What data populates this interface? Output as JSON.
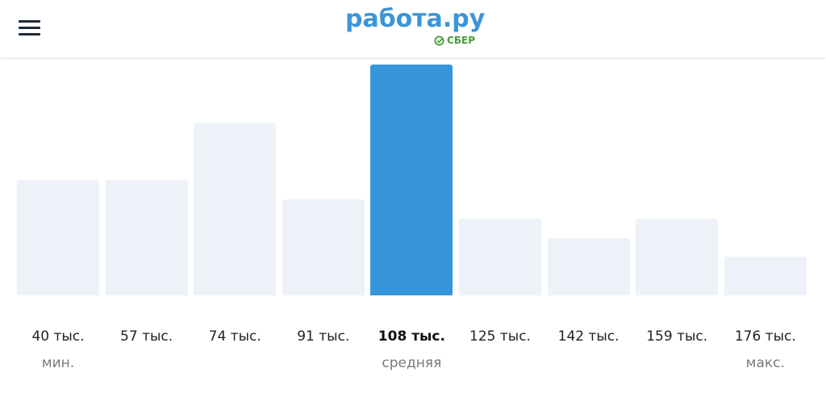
{
  "header": {
    "menu_icon": "hamburger-menu-icon",
    "logo_text": "работа.ру",
    "logo_sub": "СБЕР"
  },
  "colors": {
    "highlight": "#3796db",
    "bar": "#eef2f8",
    "logo": "#3b95d6",
    "sber": "#4a9b3a"
  },
  "chart_data": {
    "type": "bar",
    "categories": [
      "40 тыс.",
      "57 тыс.",
      "74 тыс.",
      "91 тыс.",
      "108 тыс.",
      "125 тыс.",
      "142 тыс.",
      "159 тыс.",
      "176 тыс."
    ],
    "values": [
      6,
      6,
      9,
      5,
      12,
      4,
      3,
      4,
      2
    ],
    "highlighted_index": 4,
    "sublabels": [
      "мин.",
      "",
      "",
      "",
      "средняя",
      "",
      "",
      "",
      "макс."
    ],
    "grid": false,
    "yaxis_visible": false
  }
}
